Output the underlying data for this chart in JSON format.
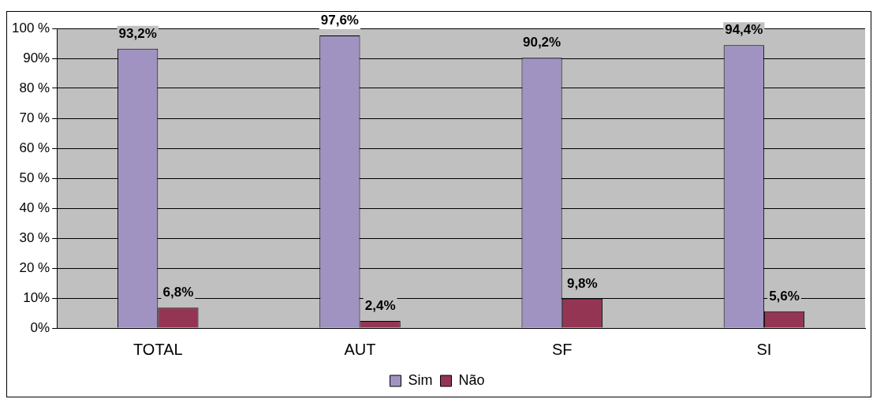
{
  "chart_data": {
    "type": "bar",
    "categories": [
      "TOTAL",
      "AUT",
      "SF",
      "SI"
    ],
    "series": [
      {
        "name": "Sim",
        "color": "#a193c1",
        "values": [
          93.2,
          97.6,
          90.2,
          94.4
        ],
        "value_labels": [
          "93,2%",
          "97,6%",
          "90,2%",
          "94,4%"
        ]
      },
      {
        "name": "Não",
        "color": "#953554",
        "values": [
          6.8,
          2.4,
          9.8,
          5.6
        ],
        "value_labels": [
          "6,8%",
          "2,4%",
          "9,8%",
          "5,6%"
        ]
      }
    ],
    "ylim": [
      0,
      100
    ],
    "yticks": [
      {
        "value": 0,
        "label": "0%"
      },
      {
        "value": 10,
        "label": "10%"
      },
      {
        "value": 20,
        "label": "20 %"
      },
      {
        "value": 30,
        "label": "30 %"
      },
      {
        "value": 40,
        "label": "40 %"
      },
      {
        "value": 50,
        "label": "50 %"
      },
      {
        "value": 60,
        "label": "60 %"
      },
      {
        "value": 70,
        "label": "70 %"
      },
      {
        "value": 80,
        "label": "80 %"
      },
      {
        "value": 90,
        "label": "90%"
      },
      {
        "value": 100,
        "label": "100 %"
      }
    ],
    "grid": "y",
    "legend": "bottom"
  }
}
